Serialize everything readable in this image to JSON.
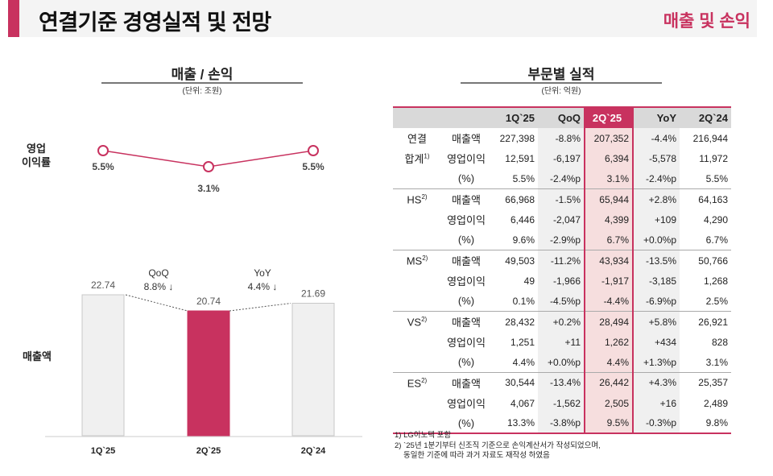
{
  "header": {
    "title": "연결기준 경영실적 및 전망",
    "section": "매출 및 손익",
    "accent_color": "#c8325f"
  },
  "left": {
    "title": "매출 / 손익",
    "unit": "(단위: 조원)",
    "margin_label": [
      "영업",
      "이익률"
    ],
    "sales_label": "매출액"
  },
  "chart_data": [
    {
      "type": "line",
      "title": "",
      "categories": [
        "1Q`25",
        "2Q`25",
        "2Q`24"
      ],
      "values": [
        5.5,
        3.1,
        5.5
      ],
      "labels": [
        "5.5%",
        "3.1%",
        "5.5%"
      ],
      "series_label": "영업이익률",
      "color": "#c8325f"
    },
    {
      "type": "bar",
      "categories": [
        "1Q`25",
        "2Q`25",
        "2Q`24"
      ],
      "values": [
        22.74,
        20.74,
        21.69
      ],
      "labels": [
        "22.74",
        "20.74",
        "21.69"
      ],
      "highlight": "2Q`25",
      "colors": {
        "normal": "#f0f0f0",
        "highlight": "#c8325f"
      },
      "annotations": [
        {
          "label": "QoQ",
          "value": "8.8% ↓"
        },
        {
          "label": "YoY",
          "value": "4.4% ↓"
        }
      ]
    }
  ],
  "right": {
    "title": "부문별 실적",
    "unit": "(단위: 억원)"
  },
  "table": {
    "columns": [
      "1Q`25",
      "QoQ",
      "2Q`25",
      "YoY",
      "2Q`24"
    ],
    "groups": [
      {
        "name": "연결",
        "name2": "합계",
        "sup": "1)",
        "rows": [
          {
            "metric": "매출액",
            "values": [
              "227,398",
              "-8.8%",
              "207,352",
              "-4.4%",
              "216,944"
            ]
          },
          {
            "metric": "영업이익",
            "values": [
              "12,591",
              "-6,197",
              "6,394",
              "-5,578",
              "11,972"
            ]
          },
          {
            "metric": "(%)",
            "values": [
              "5.5%",
              "-2.4%p",
              "3.1%",
              "-2.4%p",
              "5.5%"
            ]
          }
        ]
      },
      {
        "name": "HS",
        "sup": "2)",
        "rows": [
          {
            "metric": "매출액",
            "values": [
              "66,968",
              "-1.5%",
              "65,944",
              "+2.8%",
              "64,163"
            ]
          },
          {
            "metric": "영업이익",
            "values": [
              "6,446",
              "-2,047",
              "4,399",
              "+109",
              "4,290"
            ]
          },
          {
            "metric": "(%)",
            "values": [
              "9.6%",
              "-2.9%p",
              "6.7%",
              "+0.0%p",
              "6.7%"
            ]
          }
        ]
      },
      {
        "name": "MS",
        "sup": "2)",
        "rows": [
          {
            "metric": "매출액",
            "values": [
              "49,503",
              "-11.2%",
              "43,934",
              "-13.5%",
              "50,766"
            ]
          },
          {
            "metric": "영업이익",
            "values": [
              "49",
              "-1,966",
              "-1,917",
              "-3,185",
              "1,268"
            ]
          },
          {
            "metric": "(%)",
            "values": [
              "0.1%",
              "-4.5%p",
              "-4.4%",
              "-6.9%p",
              "2.5%"
            ]
          }
        ]
      },
      {
        "name": "VS",
        "sup": "2)",
        "rows": [
          {
            "metric": "매출액",
            "values": [
              "28,432",
              "+0.2%",
              "28,494",
              "+5.8%",
              "26,921"
            ]
          },
          {
            "metric": "영업이익",
            "values": [
              "1,251",
              "+11",
              "1,262",
              "+434",
              "828"
            ]
          },
          {
            "metric": "(%)",
            "values": [
              "4.4%",
              "+0.0%p",
              "4.4%",
              "+1.3%p",
              "3.1%"
            ]
          }
        ]
      },
      {
        "name": "ES",
        "sup": "2)",
        "rows": [
          {
            "metric": "매출액",
            "values": [
              "30,544",
              "-13.4%",
              "26,442",
              "+4.3%",
              "25,357"
            ]
          },
          {
            "metric": "영업이익",
            "values": [
              "4,067",
              "-1,562",
              "2,505",
              "+16",
              "2,489"
            ]
          },
          {
            "metric": "(%)",
            "values": [
              "13.3%",
              "-3.8%p",
              "9.5%",
              "-0.3%p",
              "9.8%"
            ]
          }
        ]
      }
    ]
  },
  "notes": [
    "1) LG이노텍 포함",
    "2) `25년 1분기부터 신조직 기준으로 손익계산서가 작성되었으며,",
    "동일한 기준에 따라 과거 자료도 재작성 하였음"
  ]
}
